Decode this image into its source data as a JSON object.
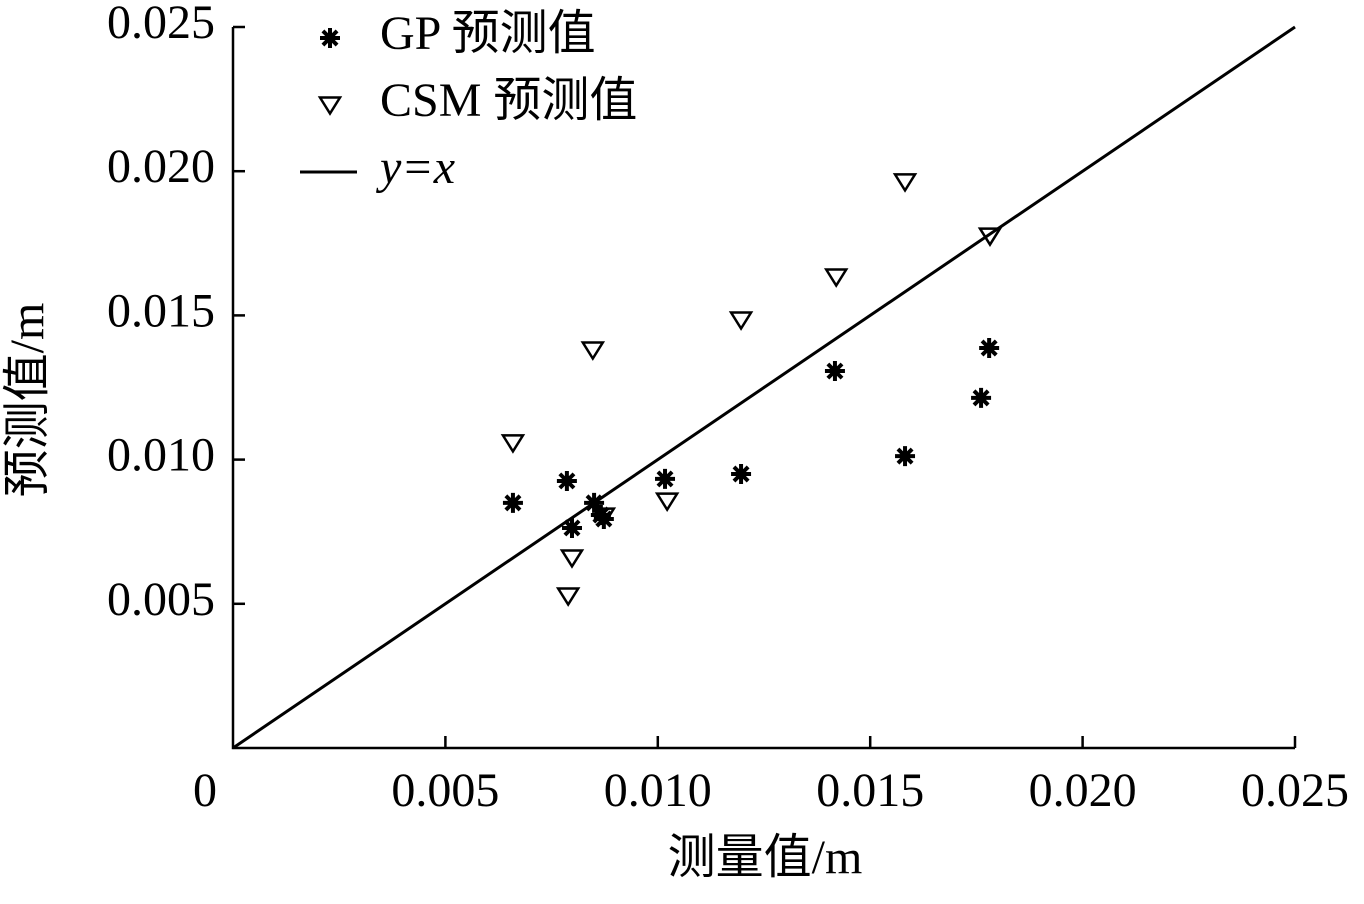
{
  "chart_data": {
    "type": "scatter",
    "xlabel": "测量值/m",
    "ylabel": "预测值/m",
    "xlim": [
      0,
      0.025
    ],
    "ylim": [
      0,
      0.025
    ],
    "xticks": [
      {
        "value": 0,
        "label": "0"
      },
      {
        "value": 0.005,
        "label": "0.005"
      },
      {
        "value": 0.01,
        "label": "0.010"
      },
      {
        "value": 0.015,
        "label": "0.015"
      },
      {
        "value": 0.02,
        "label": "0.020"
      },
      {
        "value": 0.025,
        "label": "0.025"
      }
    ],
    "yticks": [
      {
        "value": 0.005,
        "label": "0.005"
      },
      {
        "value": 0.01,
        "label": "0.010"
      },
      {
        "value": 0.015,
        "label": "0.015"
      },
      {
        "value": 0.02,
        "label": "0.020"
      },
      {
        "value": 0.025,
        "label": "0.025"
      }
    ],
    "legend": "upper left",
    "series": [
      {
        "name": "GP 预测值",
        "color": "#000000",
        "marker": "asterisk",
        "x": [
          0.00659,
          0.00786,
          0.00798,
          0.0085,
          0.00866,
          0.00873,
          0.01017,
          0.01196,
          0.01417,
          0.01582,
          0.01761,
          0.0178
        ],
        "values": [
          0.0085,
          0.00926,
          0.00763,
          0.0085,
          0.00808,
          0.00794,
          0.00933,
          0.0095,
          0.01307,
          0.01012,
          0.01214,
          0.01387
        ]
      },
      {
        "name": "CSM 预测值",
        "color": "#000000",
        "marker": "triangle-down",
        "x": [
          0.00659,
          0.00798,
          0.00789,
          0.00847,
          0.00873,
          0.01022,
          0.01196,
          0.0142,
          0.01582,
          0.01782
        ],
        "values": [
          0.01058,
          0.00659,
          0.00527,
          0.0138,
          0.00804,
          0.00856,
          0.01484,
          0.01633,
          0.01963,
          0.01775
        ]
      },
      {
        "name": "y=x",
        "color": "#000000",
        "marker": "line",
        "x": [
          0,
          0.025
        ],
        "values": [
          0,
          0.025
        ]
      }
    ]
  }
}
